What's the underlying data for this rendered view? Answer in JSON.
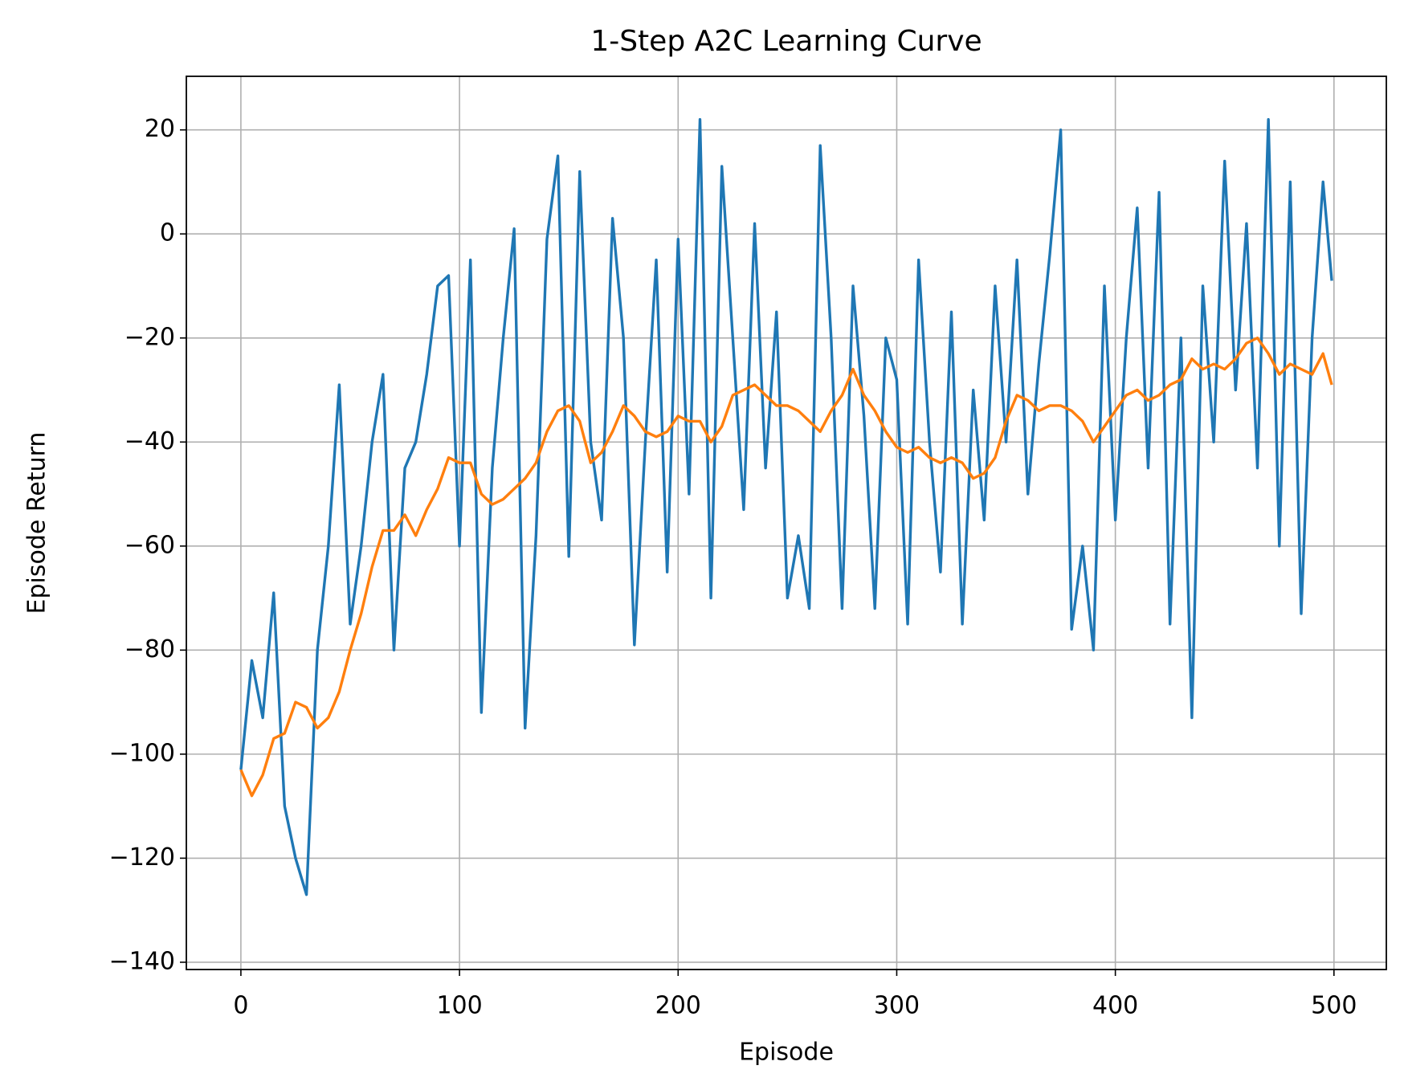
{
  "chart_data": {
    "type": "line",
    "title": "1-Step A2C Learning Curve",
    "x_label": "Episode",
    "y_label": "Episode Return",
    "x": [
      0,
      5,
      10,
      15,
      20,
      25,
      30,
      35,
      40,
      45,
      50,
      55,
      60,
      65,
      70,
      75,
      80,
      85,
      90,
      95,
      100,
      105,
      110,
      115,
      120,
      125,
      130,
      135,
      140,
      145,
      150,
      155,
      160,
      165,
      170,
      175,
      180,
      185,
      190,
      195,
      200,
      205,
      210,
      215,
      220,
      225,
      230,
      235,
      240,
      245,
      250,
      255,
      260,
      265,
      270,
      275,
      280,
      285,
      290,
      295,
      300,
      305,
      310,
      315,
      320,
      325,
      330,
      335,
      340,
      345,
      350,
      355,
      360,
      365,
      370,
      375,
      380,
      385,
      390,
      395,
      400,
      405,
      410,
      415,
      420,
      425,
      430,
      435,
      440,
      445,
      450,
      455,
      460,
      465,
      470,
      475,
      480,
      485,
      490,
      495,
      499
    ],
    "series": [
      {
        "color": "#1f77b4",
        "values": [
          -103,
          -82,
          -93,
          -69,
          -110,
          -120,
          -127,
          -80,
          -60,
          -29,
          -75,
          -60,
          -40,
          -27,
          -80,
          -45,
          -40,
          -27,
          -10,
          -8,
          -60,
          -5,
          -92,
          -45,
          -20,
          1,
          -95,
          -58,
          -1,
          15,
          -62,
          12,
          -40,
          -55,
          3,
          -20,
          -79,
          -40,
          -5,
          -65,
          -1,
          -50,
          22,
          -70,
          13,
          -20,
          -53,
          2,
          -45,
          -15,
          -70,
          -58,
          -72,
          17,
          -20,
          -72,
          -10,
          -35,
          -72,
          -20,
          -28,
          -75,
          -5,
          -40,
          -65,
          -15,
          -75,
          -30,
          -55,
          -10,
          -40,
          -5,
          -50,
          -25,
          -4,
          20,
          -76,
          -60,
          -80,
          -10,
          -55,
          -20,
          5,
          -45,
          8,
          -75,
          -20,
          -93,
          -10,
          -40,
          14,
          -30,
          2,
          -45,
          22,
          -60,
          10,
          -73,
          -20,
          10,
          -9
        ]
      },
      {
        "color": "#ff7f0e",
        "values": [
          -103,
          -108,
          -104,
          -97,
          -96,
          -90,
          -91,
          -95,
          -93,
          -88,
          -80,
          -73,
          -64,
          -57,
          -57,
          -54,
          -58,
          -53,
          -49,
          -43,
          -44,
          -44,
          -50,
          -52,
          -51,
          -49,
          -47,
          -44,
          -38,
          -34,
          -33,
          -36,
          -44,
          -42,
          -38,
          -33,
          -35,
          -38,
          -39,
          -38,
          -35,
          -36,
          -36,
          -40,
          -37,
          -31,
          -30,
          -29,
          -31,
          -33,
          -33,
          -34,
          -36,
          -38,
          -34,
          -31,
          -26,
          -31,
          -34,
          -38,
          -41,
          -42,
          -41,
          -43,
          -44,
          -43,
          -44,
          -47,
          -46,
          -43,
          -36,
          -31,
          -32,
          -34,
          -33,
          -33,
          -34,
          -36,
          -40,
          -37,
          -34,
          -31,
          -30,
          -32,
          -31,
          -29,
          -28,
          -24,
          -26,
          -25,
          -26,
          -24,
          -21,
          -20,
          -23,
          -27,
          -25,
          -26,
          -27,
          -23,
          -29
        ]
      }
    ],
    "xlim": [
      -24.95,
      523.95
    ],
    "ylim": [
      -141.4,
      30.3
    ],
    "xticks": [
      0,
      100,
      200,
      300,
      400,
      500
    ],
    "yticks": [
      {
        "value": -140,
        "label": "−140"
      },
      {
        "value": -120,
        "label": "−120"
      },
      {
        "value": -100,
        "label": "−100"
      },
      {
        "value": -80,
        "label": "−80"
      },
      {
        "value": -60,
        "label": "−60"
      },
      {
        "value": -40,
        "label": "−40"
      },
      {
        "value": -20,
        "label": "−20"
      },
      0,
      20
    ],
    "grid": true
  }
}
